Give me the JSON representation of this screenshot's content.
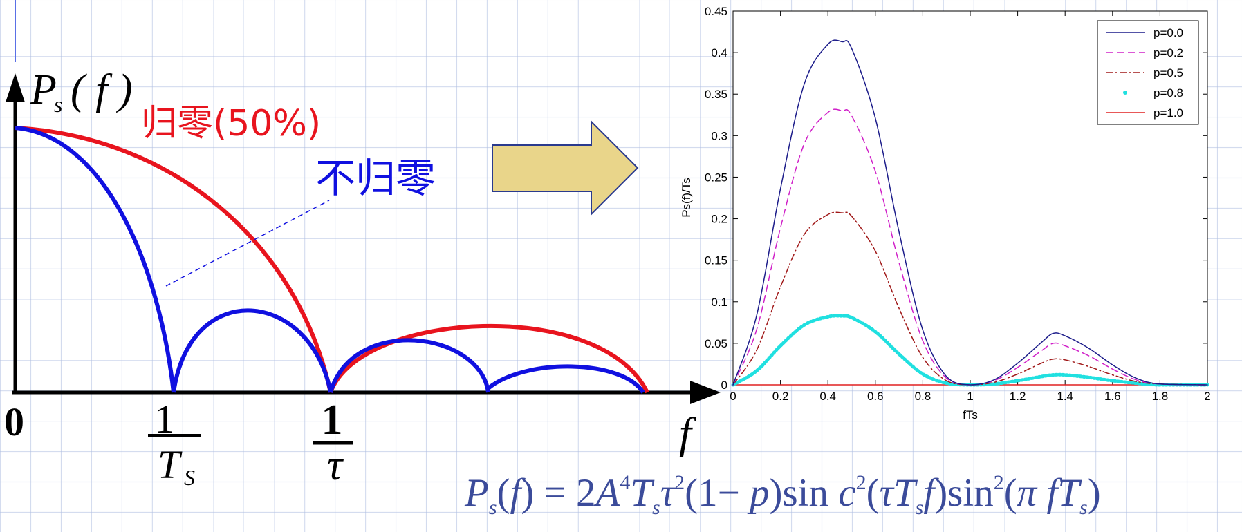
{
  "sketch": {
    "y_label_main": "P",
    "y_label_sub": "s",
    "y_label_arg": "( f )",
    "origin_label": "0",
    "x_label": "f",
    "tick1_num": "1",
    "tick1_den_main": "T",
    "tick1_den_sub": "S",
    "tick2_num": "1",
    "tick2_den": "τ",
    "label_rz": "归零(50%)",
    "label_nrz": "不归零",
    "color_rz": "#e8141e",
    "color_nrz": "#1010e0"
  },
  "arrow_color": "#e9d58a",
  "chart_data": {
    "type": "line",
    "xlabel": "fTs",
    "ylabel": "Ps(f)/Ts",
    "xlim": [
      0,
      2
    ],
    "ylim": [
      0,
      0.45
    ],
    "xticks": [
      "0",
      "0.2",
      "0.4",
      "0.6",
      "0.8",
      "1",
      "1.2",
      "1.4",
      "1.6",
      "1.8",
      "2"
    ],
    "yticks": [
      "0",
      "0.05",
      "0.1",
      "0.15",
      "0.2",
      "0.25",
      "0.3",
      "0.35",
      "0.4",
      "0.45"
    ],
    "x": [
      0,
      0.1,
      0.2,
      0.3,
      0.4,
      0.46,
      0.5,
      0.6,
      0.7,
      0.8,
      0.9,
      1.0,
      1.1,
      1.2,
      1.3,
      1.35,
      1.4,
      1.5,
      1.6,
      1.7,
      1.8,
      2.0
    ],
    "legend_position": "top-right",
    "series": [
      {
        "name": "p=0.0",
        "color": "#1c1c8a",
        "dash": "solid",
        "values": [
          0,
          0.084,
          0.236,
          0.362,
          0.41,
          0.413,
          0.405,
          0.321,
          0.184,
          0.066,
          0.01,
          0,
          0.006,
          0.026,
          0.051,
          0.062,
          0.059,
          0.044,
          0.024,
          0.008,
          0.001,
          0
        ]
      },
      {
        "name": "p=0.2",
        "color": "#d020c8",
        "dash": "dashed",
        "values": [
          0,
          0.067,
          0.189,
          0.29,
          0.328,
          0.33,
          0.324,
          0.257,
          0.147,
          0.053,
          0.008,
          0,
          0.005,
          0.021,
          0.041,
          0.05,
          0.047,
          0.035,
          0.019,
          0.006,
          0.001,
          0
        ]
      },
      {
        "name": "p=0.5",
        "color": "#a01818",
        "dash": "dashdot",
        "values": [
          0,
          0.042,
          0.118,
          0.181,
          0.205,
          0.207,
          0.203,
          0.161,
          0.092,
          0.033,
          0.005,
          0,
          0.003,
          0.013,
          0.026,
          0.031,
          0.03,
          0.022,
          0.012,
          0.004,
          0.001,
          0
        ]
      },
      {
        "name": "p=0.8",
        "color": "#20e0e0",
        "dash": "dotted",
        "values": [
          0,
          0.017,
          0.047,
          0.072,
          0.082,
          0.083,
          0.081,
          0.064,
          0.037,
          0.013,
          0.002,
          0,
          0.001,
          0.005,
          0.01,
          0.012,
          0.012,
          0.009,
          0.005,
          0.002,
          0,
          0
        ]
      },
      {
        "name": "p=1.0",
        "color": "#e02020",
        "dash": "solid",
        "values": [
          0,
          0,
          0,
          0,
          0,
          0,
          0,
          0,
          0,
          0,
          0,
          0,
          0,
          0,
          0,
          0,
          0,
          0,
          0,
          0,
          0,
          0
        ]
      }
    ]
  }
}
